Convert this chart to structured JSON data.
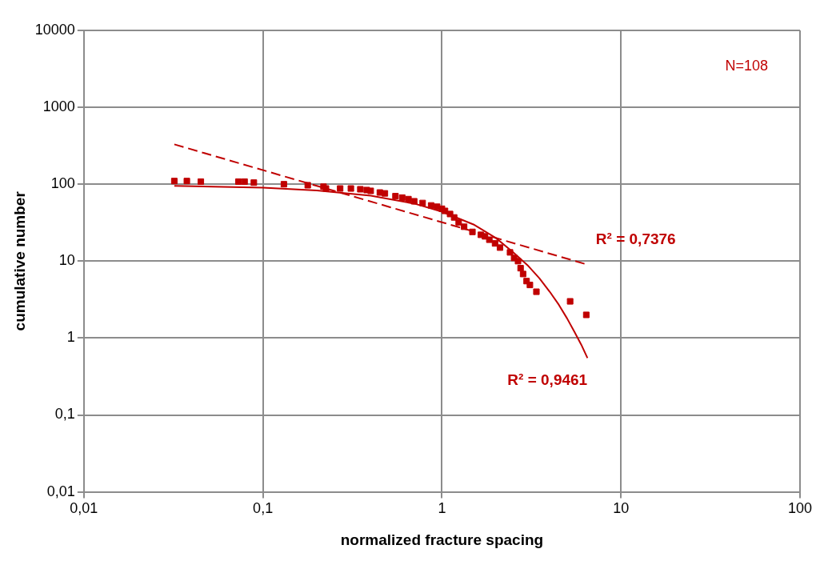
{
  "chart_data": {
    "type": "scatter",
    "xlabel": "normalized fracture spacing",
    "ylabel": "cumulative number",
    "log": "xy",
    "grid": true,
    "legend": false,
    "xlim": [
      0.01,
      100
    ],
    "xticks": [
      {
        "value": 0.01,
        "label": "0,01"
      },
      {
        "value": 0.1,
        "label": "0,1"
      },
      1,
      10,
      100
    ],
    "ylim": [
      0.01,
      10000
    ],
    "yticks": [
      {
        "value": 0.01,
        "label": "0,01"
      },
      {
        "value": 0.1,
        "label": "0,1"
      },
      1,
      10,
      100,
      1000,
      10000
    ],
    "annotations": [
      "N=108",
      "R² = 0,7376",
      "R² = 0,9461"
    ],
    "series": [
      {
        "marker": "square",
        "color": "#c00000",
        "x": [
          0.032,
          0.0376,
          0.045,
          0.073,
          0.079,
          0.089,
          0.131,
          0.178,
          0.218,
          0.225,
          0.27,
          0.31,
          0.35,
          0.38,
          0.4,
          0.45,
          0.48,
          0.55,
          0.6,
          0.65,
          0.7,
          0.78,
          0.87,
          0.94,
          1.0,
          1.04,
          1.11,
          1.17,
          1.24,
          1.33,
          1.48,
          1.65,
          1.74,
          1.84,
          1.98,
          2.11,
          2.4,
          2.53,
          2.66,
          2.75,
          2.84,
          2.97,
          3.1,
          3.37,
          5.2,
          6.4
        ],
        "values": [
          110,
          110,
          108,
          108,
          108,
          105,
          100,
          97,
          93,
          88,
          88,
          88,
          86,
          84,
          82,
          78,
          76,
          70,
          67,
          64,
          60,
          57,
          53,
          51,
          48,
          45,
          41,
          37,
          32,
          28,
          24,
          22,
          21,
          19,
          17,
          15,
          13,
          11,
          10,
          8.1,
          6.8,
          5.5,
          4.9,
          4,
          3,
          2
        ]
      },
      {
        "type": "line",
        "marker": "none",
        "line_style": "dashed",
        "color": "#c00000",
        "x": [
          0.032,
          6.4
        ],
        "values": [
          330,
          9.1
        ]
      },
      {
        "type": "line",
        "marker": "none",
        "line_style": "solid",
        "color": "#c00000",
        "x": [
          0.032,
          0.1,
          0.2,
          0.4,
          0.7,
          1,
          1.5,
          2,
          2.5,
          3,
          3.5,
          4,
          4.5,
          5,
          5.5,
          6,
          6.5
        ],
        "values": [
          95,
          90,
          83,
          71,
          56,
          44,
          30,
          20,
          13,
          8.9,
          6,
          4,
          2.7,
          1.8,
          1.2,
          0.82,
          0.55
        ]
      }
    ]
  }
}
